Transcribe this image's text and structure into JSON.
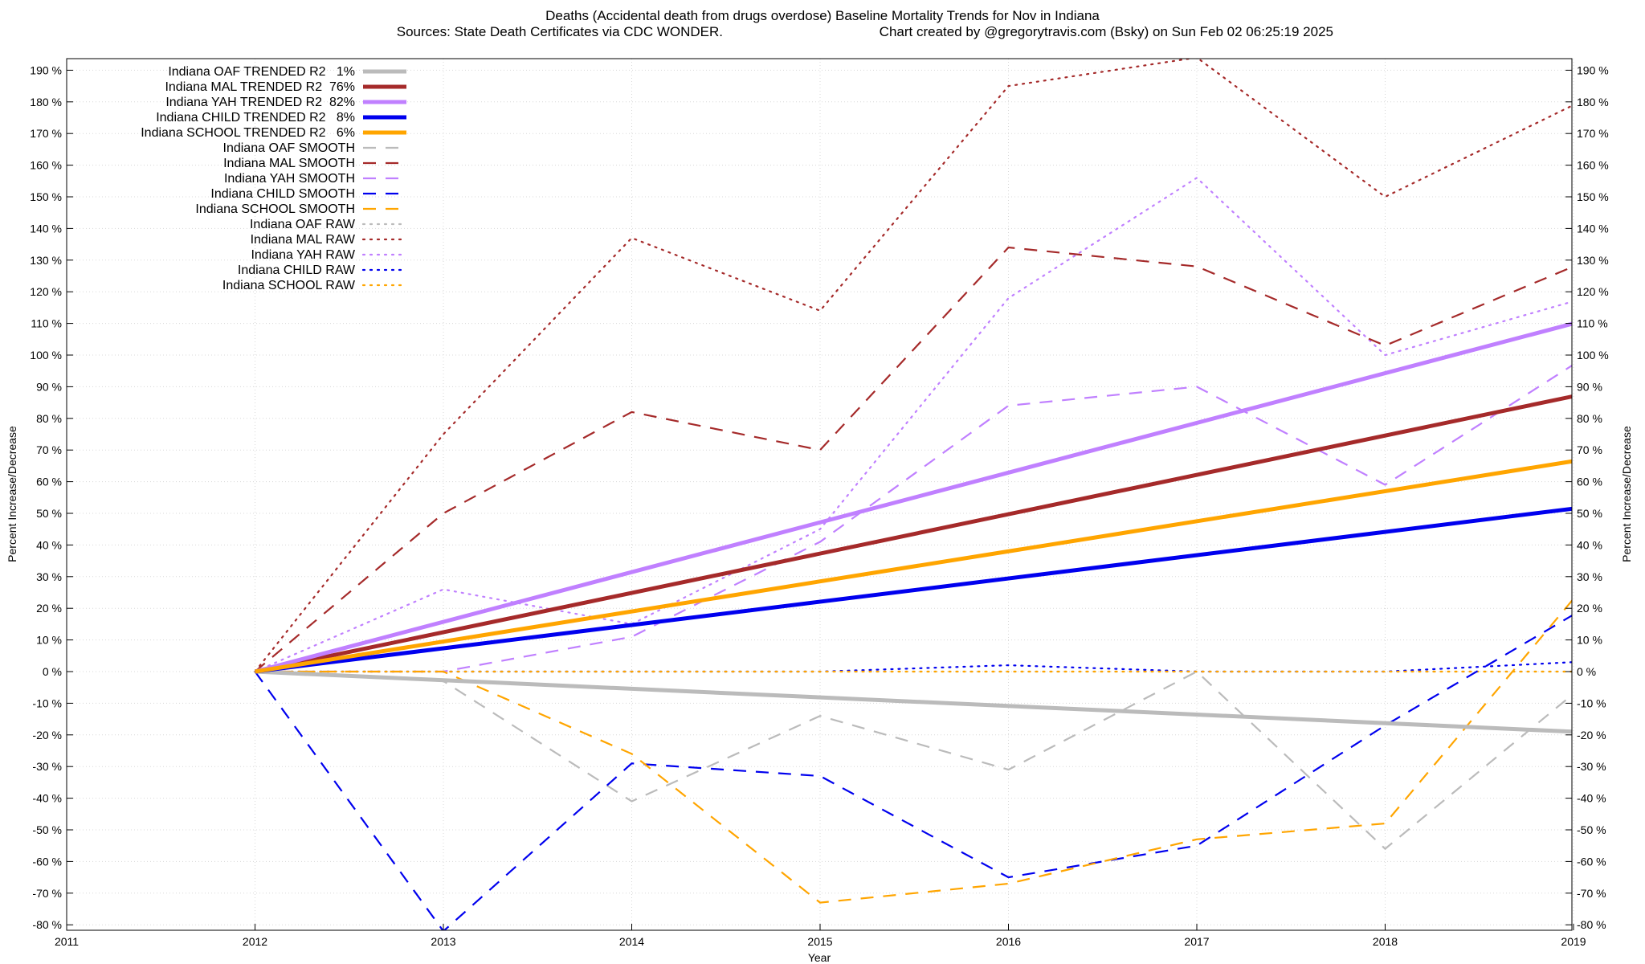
{
  "chart_data": {
    "type": "line",
    "title": "Deaths (Accidental death from drugs overdose)  Baseline Mortality Trends for Nov in Indiana",
    "subtitle_left": "Sources: State Death Certificates via CDC WONDER.",
    "subtitle_right": "Chart created by @gregorytravis.com (Bsky) on Sun Feb 02 06:25:19 2025",
    "xlabel": "Year",
    "ylabel": "Percent Increase/Decrease",
    "xlim": [
      2011,
      2019
    ],
    "ylim": [
      -80,
      195
    ],
    "x_ticks": [
      "2011",
      "2012",
      "2013",
      "2014",
      "2015",
      "2016",
      "2017",
      "2018",
      "2019"
    ],
    "y_ticks": [
      "190 %",
      "180 %",
      "170 %",
      "160 %",
      "150 %",
      "140 %",
      "130 %",
      "120 %",
      "110 %",
      "100 %",
      "90 %",
      "80 %",
      "70 %",
      "60 %",
      "50 %",
      "40 %",
      "30 %",
      "20 %",
      "10 %",
      "0 %",
      "-10 %",
      "-20 %",
      "-30 %",
      "-40 %",
      "-50 %",
      "-60 %",
      "-70 %",
      "-80 %"
    ],
    "grid": true,
    "legend_position": "top-left",
    "series": [
      {
        "name": "Indiana OAF TRENDED R2   1%",
        "style": "solid",
        "color": "#bbbbbb",
        "x": [
          2012,
          2019
        ],
        "y": [
          0,
          -19
        ]
      },
      {
        "name": "Indiana MAL TRENDED R2  76%",
        "style": "solid",
        "color": "#a52a2a",
        "x": [
          2012,
          2019
        ],
        "y": [
          0,
          87
        ]
      },
      {
        "name": "Indiana YAH TRENDED R2  82%",
        "style": "solid",
        "color": "#c080ff",
        "x": [
          2012,
          2019
        ],
        "y": [
          0,
          110
        ]
      },
      {
        "name": "Indiana CHILD TRENDED R2   8%",
        "style": "solid",
        "color": "#0000ee",
        "x": [
          2012,
          2019
        ],
        "y": [
          0,
          51.5
        ]
      },
      {
        "name": "Indiana SCHOOL TRENDED R2   6%",
        "style": "solid",
        "color": "#ffa500",
        "x": [
          2012,
          2019
        ],
        "y": [
          0,
          66.5
        ]
      },
      {
        "name": "Indiana OAF SMOOTH",
        "style": "dashed",
        "color": "#bbbbbb",
        "x": [
          2012,
          2013,
          2014,
          2015,
          2016,
          2017,
          2018,
          2019
        ],
        "y": [
          0,
          -3,
          -41,
          -14,
          -31,
          0,
          -56,
          -7
        ]
      },
      {
        "name": "Indiana MAL SMOOTH",
        "style": "dashed",
        "color": "#a52a2a",
        "x": [
          2012,
          2013,
          2014,
          2015,
          2016,
          2017,
          2018,
          2019
        ],
        "y": [
          0,
          50,
          82,
          70,
          134,
          128,
          103,
          128
        ]
      },
      {
        "name": "Indiana YAH SMOOTH",
        "style": "dashed",
        "color": "#c080ff",
        "x": [
          2012,
          2013,
          2014,
          2015,
          2016,
          2017,
          2018,
          2019
        ],
        "y": [
          0,
          0,
          11,
          41,
          84,
          90,
          59,
          97
        ]
      },
      {
        "name": "Indiana CHILD SMOOTH",
        "style": "dashed",
        "color": "#0000ee",
        "x": [
          2012,
          2013,
          2014,
          2015,
          2016,
          2017,
          2018,
          2019
        ],
        "y": [
          0,
          -82,
          -29,
          -33,
          -65,
          -55,
          -17,
          18
        ]
      },
      {
        "name": "Indiana SCHOOL SMOOTH",
        "style": "dashed",
        "color": "#ffa500",
        "x": [
          2012,
          2013,
          2014,
          2015,
          2016,
          2017,
          2018,
          2019
        ],
        "y": [
          0,
          0,
          -26,
          -73,
          -67,
          -53,
          -48,
          23
        ]
      },
      {
        "name": "Indiana OAF RAW",
        "style": "dotted",
        "color": "#bbbbbb",
        "x": [
          2012,
          2013,
          2014,
          2015,
          2016,
          2017,
          2018,
          2019
        ],
        "y": [
          0,
          0,
          0,
          0,
          0,
          0,
          0,
          0
        ]
      },
      {
        "name": "Indiana MAL RAW",
        "style": "dotted",
        "color": "#a52a2a",
        "x": [
          2012,
          2013,
          2014,
          2015,
          2016,
          2017,
          2018,
          2019
        ],
        "y": [
          0,
          75,
          137,
          114,
          185,
          194,
          150,
          179
        ]
      },
      {
        "name": "Indiana YAH RAW",
        "style": "dotted",
        "color": "#c080ff",
        "x": [
          2012,
          2013,
          2014,
          2015,
          2016,
          2017,
          2018,
          2019
        ],
        "y": [
          0,
          26,
          15,
          45,
          118,
          156,
          100,
          117
        ]
      },
      {
        "name": "Indiana CHILD RAW",
        "style": "dotted",
        "color": "#0000ee",
        "x": [
          2012,
          2013,
          2014,
          2015,
          2016,
          2017,
          2018,
          2019
        ],
        "y": [
          0,
          0,
          0,
          0,
          2,
          0,
          0,
          3
        ]
      },
      {
        "name": "Indiana SCHOOL RAW",
        "style": "dotted",
        "color": "#ffa500",
        "x": [
          2012,
          2013,
          2014,
          2015,
          2016,
          2017,
          2018,
          2019
        ],
        "y": [
          0,
          0,
          0,
          0,
          0,
          0,
          0,
          0
        ]
      }
    ]
  }
}
